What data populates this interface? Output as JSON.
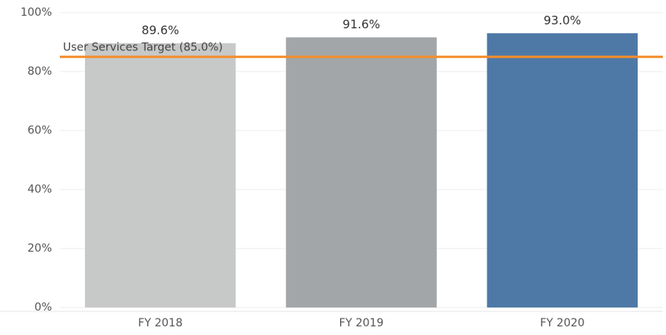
{
  "chart_data": {
    "type": "bar",
    "categories": [
      "FY 2018",
      "FY 2019",
      "FY 2020"
    ],
    "values": [
      89.6,
      91.6,
      93.0
    ],
    "value_labels": [
      "89.6%",
      "91.6%",
      "93.0%"
    ],
    "colors": [
      "#c7c8c8",
      "#a2a6a8",
      "#4e79a7"
    ],
    "ylim": [
      0,
      100
    ],
    "yticks": [
      {
        "value": 0,
        "label": "0%"
      },
      {
        "value": 20,
        "label": "20%"
      },
      {
        "value": 40,
        "label": "40%"
      },
      {
        "value": 60,
        "label": "60%"
      },
      {
        "value": 80,
        "label": "80%"
      },
      {
        "value": 100,
        "label": "100%"
      }
    ],
    "grid": true,
    "reference_line": {
      "value": 85.0,
      "label": "User Services Target (85.0%)",
      "color": "#f28e2b"
    }
  }
}
